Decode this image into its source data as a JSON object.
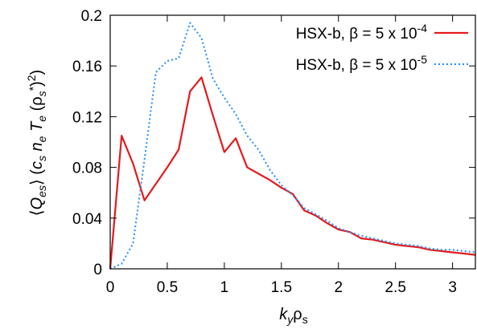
{
  "chart_data": {
    "type": "line",
    "title": "",
    "xlabel": "k_y ρ_s",
    "ylabel": "⟨Q_es⟩ (c_s n_e T_e (ρ_s*)²)",
    "xlim": [
      0,
      3.2
    ],
    "ylim": [
      0,
      0.2
    ],
    "x_ticks": [
      0,
      0.5,
      1,
      1.5,
      2,
      2.5,
      3
    ],
    "x_tick_labels": [
      "0",
      "0.5",
      "1",
      "1.5",
      "2",
      "2.5",
      "3"
    ],
    "y_ticks": [
      0,
      0.04,
      0.08,
      0.12,
      0.16,
      0.2
    ],
    "y_tick_labels": [
      "0",
      "0.04",
      "0.08",
      "0.12",
      "0.16",
      "0.2"
    ],
    "grid": false,
    "legend_position": "top-right",
    "series": [
      {
        "name": "HSX-b, β = 5 x 10",
        "name_exponent": "-4",
        "color": "#e41a1c",
        "style": "solid",
        "x": [
          0,
          0.1,
          0.2,
          0.3,
          0.4,
          0.5,
          0.6,
          0.7,
          0.8,
          0.9,
          1.0,
          1.1,
          1.2,
          1.3,
          1.4,
          1.5,
          1.6,
          1.7,
          1.8,
          1.9,
          2.0,
          2.1,
          2.2,
          2.3,
          2.4,
          2.5,
          2.6,
          2.7,
          2.8,
          2.9,
          3.0,
          3.1,
          3.2
        ],
        "y": [
          0,
          0.105,
          0.083,
          0.054,
          0.067,
          0.08,
          0.094,
          0.14,
          0.151,
          0.121,
          0.092,
          0.103,
          0.08,
          0.075,
          0.07,
          0.064,
          0.059,
          0.046,
          0.042,
          0.036,
          0.031,
          0.029,
          0.024,
          0.023,
          0.021,
          0.019,
          0.018,
          0.017,
          0.015,
          0.014,
          0.013,
          0.012,
          0.011
        ]
      },
      {
        "name": "HSX-b, β = 5 x 10",
        "name_exponent": "-5",
        "color": "#1f8fff",
        "style": "dotted",
        "x": [
          0,
          0.1,
          0.2,
          0.3,
          0.4,
          0.5,
          0.6,
          0.7,
          0.8,
          0.9,
          1.0,
          1.1,
          1.2,
          1.3,
          1.4,
          1.5,
          1.6,
          1.7,
          1.8,
          1.9,
          2.0,
          2.1,
          2.2,
          2.3,
          2.4,
          2.5,
          2.6,
          2.7,
          2.8,
          2.9,
          3.0,
          3.1,
          3.2
        ],
        "y": [
          0,
          0.004,
          0.02,
          0.086,
          0.155,
          0.164,
          0.166,
          0.194,
          0.182,
          0.15,
          0.135,
          0.122,
          0.105,
          0.094,
          0.078,
          0.066,
          0.058,
          0.048,
          0.043,
          0.038,
          0.032,
          0.029,
          0.026,
          0.024,
          0.022,
          0.02,
          0.019,
          0.018,
          0.016,
          0.015,
          0.015,
          0.014,
          0.013
        ]
      }
    ]
  }
}
